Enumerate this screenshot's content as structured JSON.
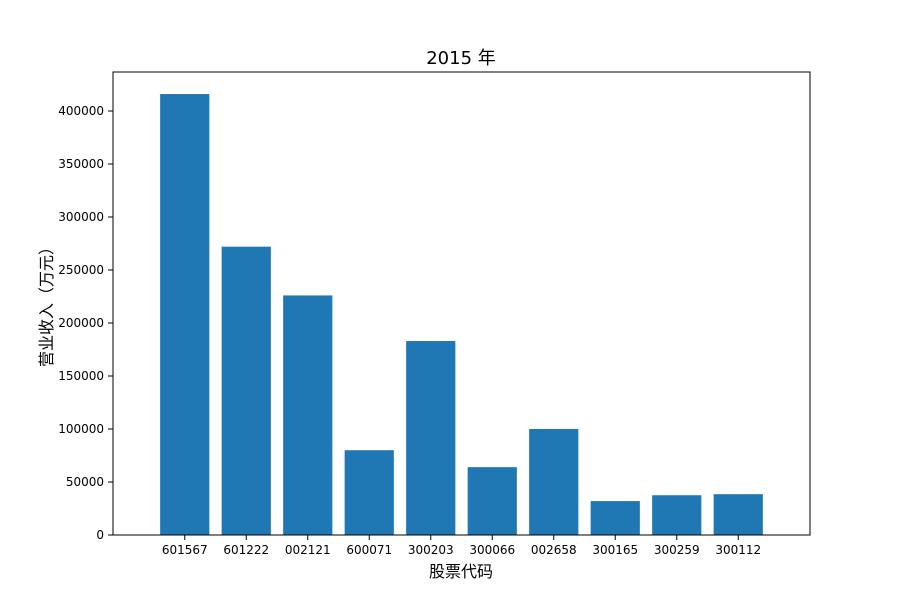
{
  "chart_data": {
    "type": "bar",
    "title": "2015 年",
    "xlabel": "股票代码",
    "ylabel": "营业收入（万元）",
    "categories": [
      "601567",
      "601222",
      "002121",
      "600071",
      "300203",
      "300066",
      "002658",
      "300165",
      "300259",
      "300112"
    ],
    "values": [
      416000,
      272000,
      226000,
      80000,
      183000,
      64000,
      100000,
      32000,
      37500,
      38500
    ],
    "ylim": [
      0,
      436800
    ],
    "yticks": [
      0,
      50000,
      100000,
      150000,
      200000,
      250000,
      300000,
      350000,
      400000
    ],
    "bar_color": "#1f77b4",
    "grid": false,
    "legend": "none"
  }
}
